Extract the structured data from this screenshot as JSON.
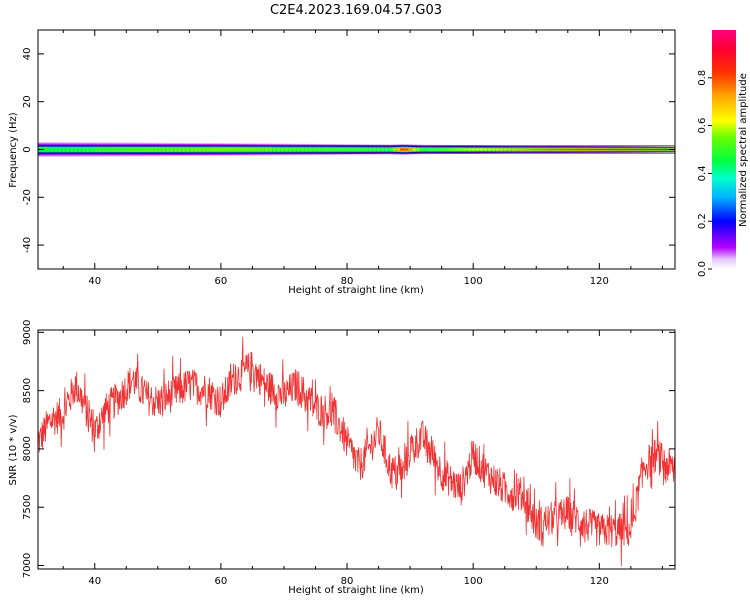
{
  "figure": {
    "title": "C2E4.2023.169.04.57.G03"
  },
  "chart_data": [
    {
      "type": "heatmap",
      "title": "",
      "xlabel": "Height of straight line (km)",
      "ylabel": "Frequency (Hz)",
      "xlim": [
        31,
        132
      ],
      "ylim": [
        -50,
        50
      ],
      "xticks": [
        40,
        60,
        80,
        100,
        120
      ],
      "yticks": [
        -40,
        -20,
        0,
        20,
        40
      ],
      "ytick_labels": [
        "-40",
        "-20",
        "0",
        "20",
        "40"
      ],
      "grid": false,
      "colorbar": {
        "label": "Normalized spectral amplitude",
        "range": [
          0,
          1
        ],
        "ticks": [
          0.0,
          0.2,
          0.4,
          0.6,
          0.8
        ],
        "tick_labels": [
          "0.0",
          "0.2",
          "0.4",
          "0.6",
          "0.8"
        ],
        "colormap": "gist_rainbow_r"
      },
      "description_values": {
        "band_center_hz": 0,
        "band_halfwidth_hz": [
          3,
          2,
          1.5,
          1
        ],
        "halfwidth_at_km": [
          31,
          88,
          110,
          132
        ],
        "peak_amplitude_by_km": {
          "x": [
            31,
            60,
            87,
            89,
            92,
            110,
            120,
            132
          ],
          "v": [
            0.45,
            0.55,
            0.5,
            0.85,
            0.5,
            0.75,
            0.85,
            0.9
          ]
        }
      },
      "reference_lines_hz": [
        -1.5,
        1.5
      ]
    },
    {
      "type": "line",
      "title": "",
      "xlabel": "Height of straight line (km)",
      "ylabel": "SNR (10 * v/v)",
      "xlim": [
        31,
        132
      ],
      "ylim": [
        6970,
        9020
      ],
      "xticks": [
        40,
        60,
        80,
        100,
        120
      ],
      "yticks": [
        7000,
        7500,
        8000,
        8500,
        9000
      ],
      "grid": false,
      "series": [
        {
          "color": "#f03232",
          "trend_x": [
            31,
            33,
            35,
            37,
            40,
            42,
            44,
            46,
            48,
            50,
            55,
            58,
            60,
            62,
            65,
            67,
            70,
            72,
            75,
            78,
            80,
            82,
            85,
            87,
            89,
            90,
            92,
            95,
            98,
            100,
            102,
            105,
            108,
            110,
            115,
            118,
            120,
            122,
            125,
            127,
            129,
            132
          ],
          "trend_y": [
            8050,
            8250,
            8300,
            8550,
            8150,
            8350,
            8450,
            8600,
            8450,
            8400,
            8550,
            8500,
            8400,
            8600,
            8700,
            8550,
            8450,
            8550,
            8350,
            8300,
            8050,
            7850,
            8150,
            7800,
            7800,
            8000,
            8100,
            7800,
            7650,
            7950,
            7800,
            7650,
            7600,
            7350,
            7450,
            7350,
            7300,
            7300,
            7300,
            7850,
            7950,
            7800
          ],
          "noise_amplitude": 150
        }
      ]
    }
  ],
  "colors": {
    "band": "#f03232",
    "refline": "#111111",
    "axis": "#000000"
  }
}
